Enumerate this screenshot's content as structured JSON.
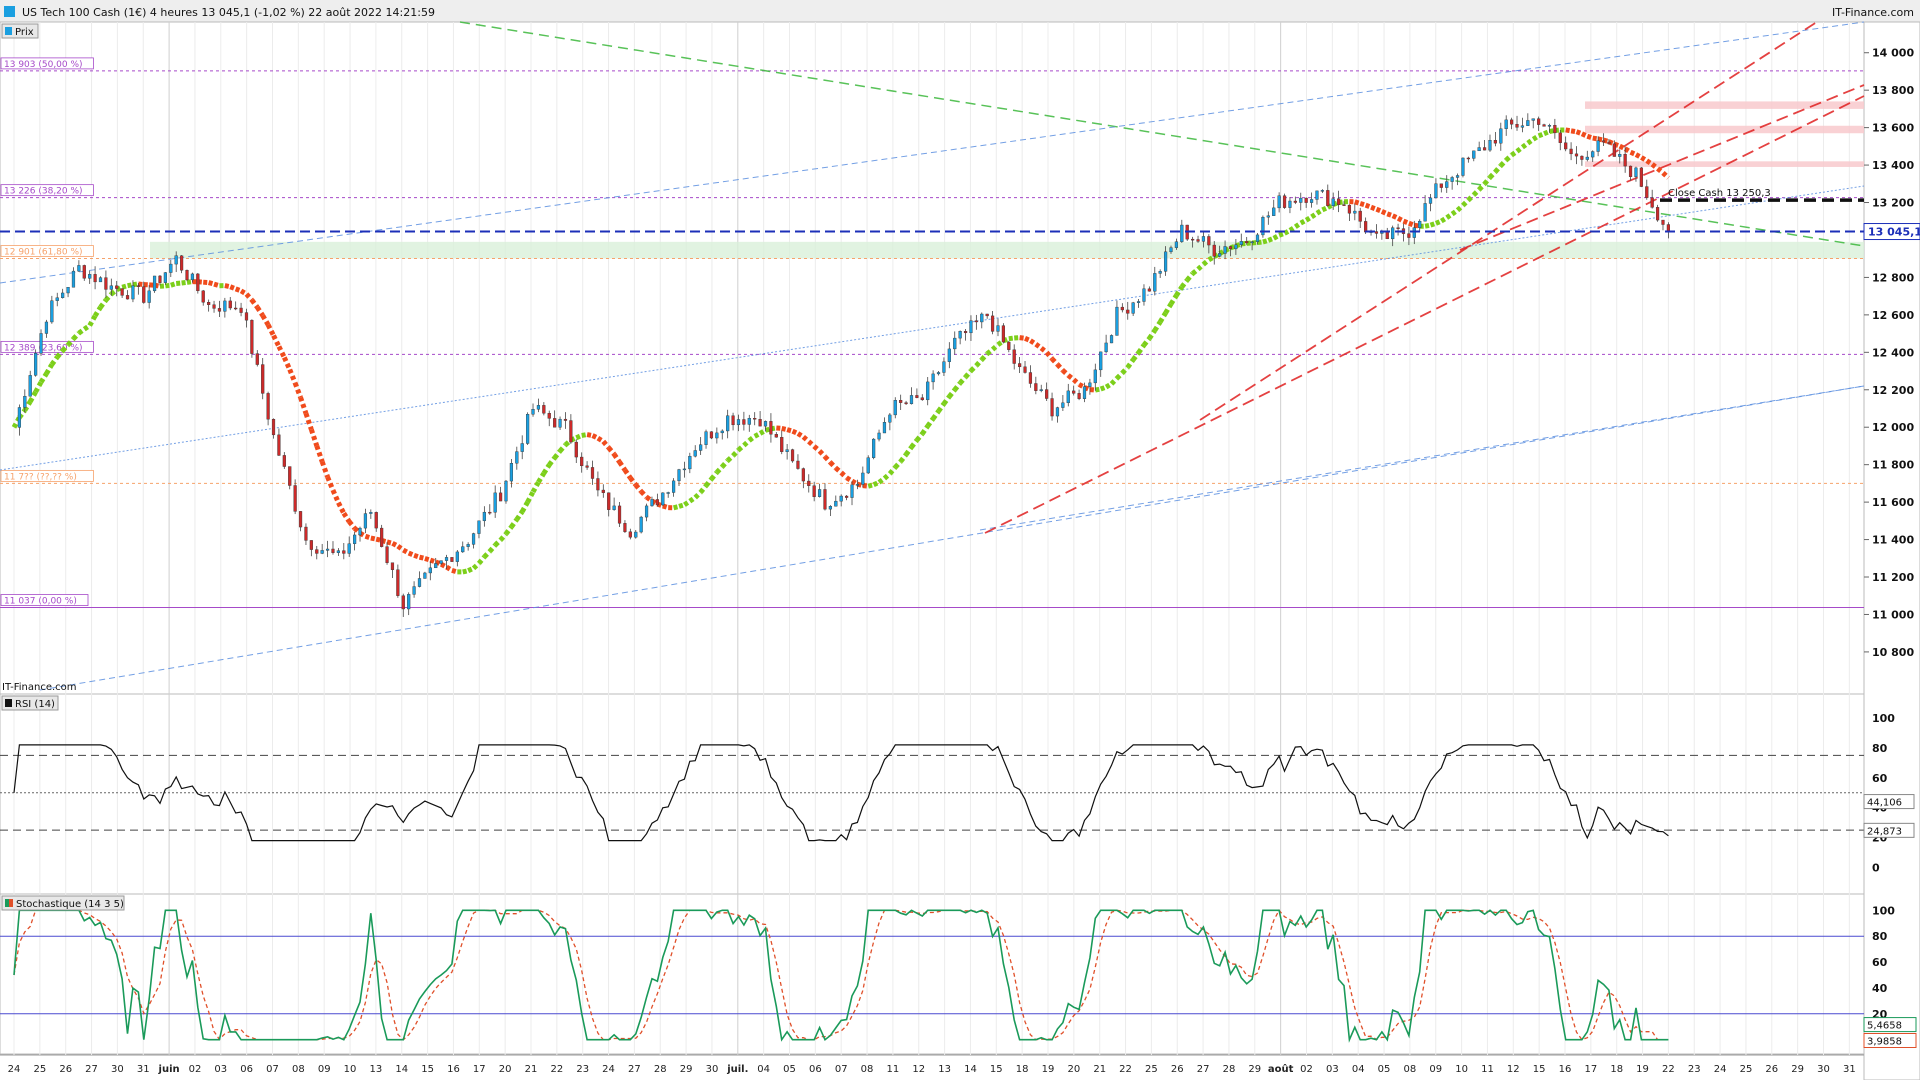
{
  "header": {
    "title": "US Tech 100 Cash (1€) 4 heures 13 045,1 (-1,02 %) 22 août 2022 14:21:59",
    "brand": "IT-Finance.com"
  },
  "colors": {
    "up_candle": "#1a9fe0",
    "down_candle": "#cc2a2a",
    "ma_up": "#7ccf1a",
    "ma_down": "#f04b1c",
    "fib_line": "#a64ac9",
    "fib_orange": "#f6a26b",
    "support_zone": "#d9f0d9",
    "resistance_zone": "#f8c9cd",
    "current_price_line": "#1c2fb8",
    "red_trend": "#e02020",
    "green_trend": "#3cb83c",
    "blue_channel": "#5b8fe0",
    "stoch_k": "#1a9a5a",
    "stoch_d": "#e0502a"
  },
  "chart_data": [
    {
      "type": "candlestick",
      "panel": "price",
      "panel_label": "Prix",
      "ylim": [
        10650,
        14100
      ],
      "yticks": [
        {
          "v": 14000,
          "t": "14 000"
        },
        {
          "v": 13800,
          "t": "13 800"
        },
        {
          "v": 13600,
          "t": "13 600"
        },
        {
          "v": 13400,
          "t": "13 400"
        },
        {
          "v": 13200,
          "t": "13 200"
        },
        {
          "v": 12800,
          "t": "12 800"
        },
        {
          "v": 12600,
          "t": "12 600"
        },
        {
          "v": 12400,
          "t": "12 400"
        },
        {
          "v": 12200,
          "t": "12 200"
        },
        {
          "v": 12000,
          "t": "12 000"
        },
        {
          "v": 11800,
          "t": "11 800"
        },
        {
          "v": 11600,
          "t": "11 600"
        },
        {
          "v": 11400,
          "t": "11 400"
        },
        {
          "v": 11200,
          "t": "11 200"
        },
        {
          "v": 11000,
          "t": "11 000"
        },
        {
          "v": 10800,
          "t": "10 800"
        }
      ],
      "last_price": {
        "value": 13045.1,
        "label": "13 045,1"
      },
      "fib_levels": [
        {
          "value": 13903,
          "label": "13 903 (50,00 %)",
          "style": "purple-dash"
        },
        {
          "value": 13226,
          "label": "13 226 (38,20 %)",
          "style": "purple-dash"
        },
        {
          "value": 12901,
          "label": "12 901 (61,80 %)",
          "style": "orange-dash"
        },
        {
          "value": 12389,
          "label": "12 389 (23,60 %)",
          "style": "purple-dash"
        },
        {
          "value": 11700,
          "label": "11 7?? (??,?? %)",
          "style": "orange-dash"
        },
        {
          "value": 11037,
          "label": "11 037 (0,00 %)",
          "style": "purple-solid"
        }
      ],
      "annotations": [
        {
          "text": "Close Cash 13 250,3",
          "value": 13250.3
        }
      ],
      "support_zone": [
        12901,
        12990
      ],
      "resistance_zones": [
        [
          13700,
          13740
        ],
        [
          13570,
          13610
        ],
        [
          13390,
          13420
        ]
      ],
      "key_points": [
        {
          "day": "24 mai",
          "close": 12000
        },
        {
          "day": "27 mai",
          "close": 12600
        },
        {
          "day": "31 mai",
          "close": 12850
        },
        {
          "day": "01 juin",
          "close": 12750
        },
        {
          "day": "03 juin",
          "close": 12700
        },
        {
          "day": "06 juin",
          "close": 12900
        },
        {
          "day": "08 juin",
          "close": 12650
        },
        {
          "day": "10 juin",
          "close": 12650
        },
        {
          "day": "13 juin",
          "close": 11950
        },
        {
          "day": "14 juin",
          "close": 11400
        },
        {
          "day": "15 juin",
          "close": 11300
        },
        {
          "day": "16 juin",
          "close": 11550
        },
        {
          "day": "17 juin",
          "close": 11050
        },
        {
          "day": "20 juin",
          "close": 11250
        },
        {
          "day": "22 juin",
          "close": 11400
        },
        {
          "day": "24 juin",
          "close": 11650
        },
        {
          "day": "27 juin",
          "close": 12100
        },
        {
          "day": "28 juin",
          "close": 12000
        },
        {
          "day": "29 juin",
          "close": 11650
        },
        {
          "day": "01 juil.",
          "close": 11450
        },
        {
          "day": "05 juil.",
          "close": 11650
        },
        {
          "day": "07 juil.",
          "close": 11900
        },
        {
          "day": "08 juil.",
          "close": 12050
        },
        {
          "day": "11 juil.",
          "close": 12050
        },
        {
          "day": "12 juil.",
          "close": 11800
        },
        {
          "day": "14 juil.",
          "close": 11600
        },
        {
          "day": "15 juil.",
          "close": 11700
        },
        {
          "day": "18 juil.",
          "close": 12100
        },
        {
          "day": "19 juil.",
          "close": 12150
        },
        {
          "day": "21 juil.",
          "close": 12450
        },
        {
          "day": "22 juil.",
          "close": 12600
        },
        {
          "day": "25 juil.",
          "close": 12300
        },
        {
          "day": "26 juil.",
          "close": 12100
        },
        {
          "day": "27 juil.",
          "close": 12200
        },
        {
          "day": "28 juil.",
          "close": 12600
        },
        {
          "day": "29 juil.",
          "close": 12750
        },
        {
          "day": "01 août",
          "close": 13050
        },
        {
          "day": "02 août",
          "close": 12950
        },
        {
          "day": "03 août",
          "close": 13000
        },
        {
          "day": "04 août",
          "close": 13200
        },
        {
          "day": "05 août",
          "close": 13250
        },
        {
          "day": "08 août",
          "close": 13200
        },
        {
          "day": "09 août",
          "close": 13000
        },
        {
          "day": "10 août",
          "close": 13050
        },
        {
          "day": "11 août",
          "close": 13300
        },
        {
          "day": "12 août",
          "close": 13450
        },
        {
          "day": "15 août",
          "close": 13600
        },
        {
          "day": "16 août",
          "close": 13650
        },
        {
          "day": "17 août",
          "close": 13450
        },
        {
          "day": "18 août",
          "close": 13500
        },
        {
          "day": "19 août",
          "close": 13350
        },
        {
          "day": "22 août",
          "close": 13045
        }
      ]
    },
    {
      "type": "line",
      "panel": "rsi",
      "panel_label": "RSI (14)",
      "ylim": [
        -15,
        112
      ],
      "yticks": [
        {
          "v": 100,
          "t": "100"
        },
        {
          "v": 80,
          "t": "80"
        },
        {
          "v": 60,
          "t": "60"
        },
        {
          "v": 40,
          "t": "40"
        },
        {
          "v": 20,
          "t": "20"
        },
        {
          "v": 0,
          "t": "0"
        }
      ],
      "levels": [
        75,
        25
      ],
      "mid_level": 50,
      "last_values": [
        {
          "value": 44.106,
          "label": "44,106"
        },
        {
          "value": 24.873,
          "label": "24,873"
        }
      ]
    },
    {
      "type": "line",
      "panel": "stochastic",
      "panel_label": "Stochastique (14 3 5)",
      "ylim": [
        -8,
        108
      ],
      "yticks": [
        {
          "v": 100,
          "t": "100"
        },
        {
          "v": 80,
          "t": "80"
        },
        {
          "v": 60,
          "t": "60"
        },
        {
          "v": 40,
          "t": "40"
        },
        {
          "v": 20,
          "t": "20"
        }
      ],
      "levels": [
        80,
        20
      ],
      "last_values": [
        {
          "value": 5.4658,
          "label": "5,4658"
        },
        {
          "value": 3.9858,
          "label": "3,9858"
        }
      ]
    }
  ],
  "x_axis": {
    "day_labels": [
      "24",
      "25",
      "26",
      "27",
      "30",
      "31",
      "juin",
      "02",
      "03",
      "06",
      "07",
      "08",
      "09",
      "10",
      "13",
      "14",
      "15",
      "16",
      "17",
      "20",
      "21",
      "22",
      "23",
      "24",
      "27",
      "28",
      "29",
      "30",
      "juil.",
      "04",
      "05",
      "06",
      "07",
      "08",
      "11",
      "12",
      "13",
      "14",
      "15",
      "18",
      "19",
      "20",
      "21",
      "22",
      "25",
      "26",
      "27",
      "28",
      "29",
      "août",
      "02",
      "03",
      "04",
      "05",
      "08",
      "09",
      "10",
      "11",
      "12",
      "15",
      "16",
      "17",
      "18",
      "19",
      "22",
      "23",
      "24",
      "25",
      "26",
      "29",
      "30",
      "31"
    ]
  }
}
